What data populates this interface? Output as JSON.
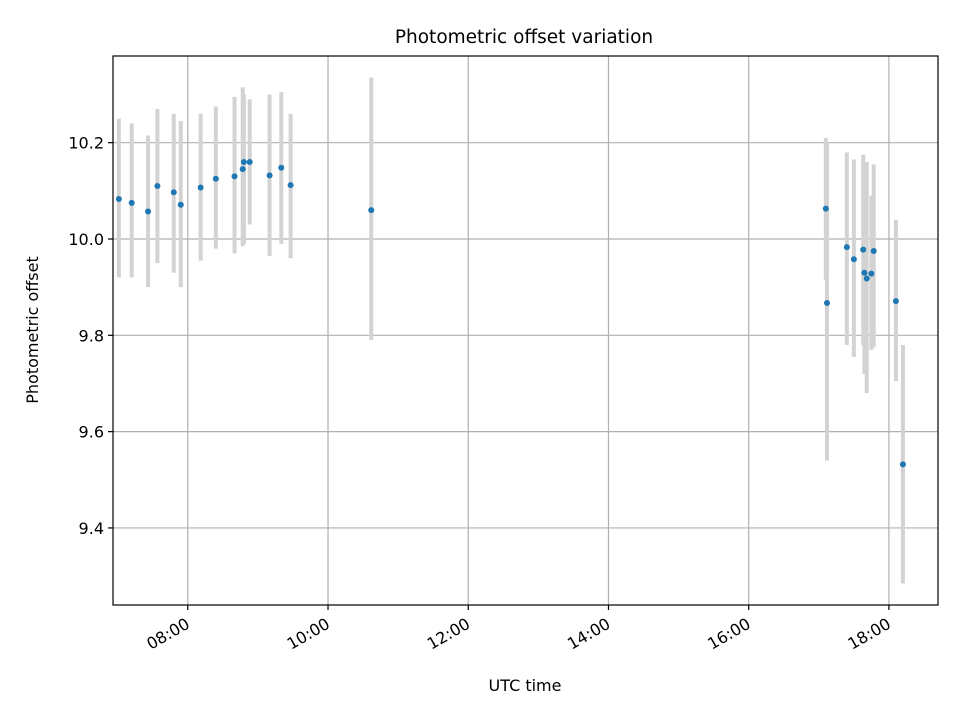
{
  "chart_data": {
    "type": "scatter",
    "title": "Photometric offset variation",
    "xlabel": "UTC time",
    "ylabel": "Photometric offset",
    "x_ticks": [
      "08:00",
      "10:00",
      "12:00",
      "14:00",
      "16:00",
      "18:00"
    ],
    "y_ticks": [
      "9.4",
      "9.6",
      "9.8",
      "10.0",
      "10.2"
    ],
    "xlim": [
      "06:56",
      "18:42"
    ],
    "ylim": [
      9.24,
      10.38
    ],
    "grid": true,
    "colors": {
      "point": "#1f77b4",
      "errorbar": "#d3d3d3",
      "grid": "#b0b0b0"
    },
    "points": [
      {
        "x": "07:01",
        "y": 10.083,
        "ylo": 9.92,
        "yhi": 10.25
      },
      {
        "x": "07:12",
        "y": 10.075,
        "ylo": 9.92,
        "yhi": 10.24
      },
      {
        "x": "07:26",
        "y": 10.057,
        "ylo": 9.9,
        "yhi": 10.215
      },
      {
        "x": "07:34",
        "y": 10.11,
        "ylo": 9.95,
        "yhi": 10.27
      },
      {
        "x": "07:48",
        "y": 10.097,
        "ylo": 9.93,
        "yhi": 10.26
      },
      {
        "x": "07:54",
        "y": 10.071,
        "ylo": 9.9,
        "yhi": 10.245
      },
      {
        "x": "08:11",
        "y": 10.107,
        "ylo": 9.955,
        "yhi": 10.26
      },
      {
        "x": "08:24",
        "y": 10.125,
        "ylo": 9.98,
        "yhi": 10.275
      },
      {
        "x": "08:40",
        "y": 10.13,
        "ylo": 9.97,
        "yhi": 10.295
      },
      {
        "x": "08:47",
        "y": 10.145,
        "ylo": 9.985,
        "yhi": 10.315
      },
      {
        "x": "08:48",
        "y": 10.16,
        "ylo": 9.99,
        "yhi": 10.3
      },
      {
        "x": "08:53",
        "y": 10.16,
        "ylo": 10.03,
        "yhi": 10.29
      },
      {
        "x": "09:10",
        "y": 10.132,
        "ylo": 9.965,
        "yhi": 10.3
      },
      {
        "x": "09:20",
        "y": 10.148,
        "ylo": 9.99,
        "yhi": 10.305
      },
      {
        "x": "09:28",
        "y": 10.112,
        "ylo": 9.96,
        "yhi": 10.26
      },
      {
        "x": "10:37",
        "y": 10.06,
        "ylo": 9.79,
        "yhi": 10.335
      },
      {
        "x": "17:06",
        "y": 10.063,
        "ylo": 9.915,
        "yhi": 10.21
      },
      {
        "x": "17:07",
        "y": 9.867,
        "ylo": 9.54,
        "yhi": 10.2
      },
      {
        "x": "17:24",
        "y": 9.983,
        "ylo": 9.78,
        "yhi": 10.18
      },
      {
        "x": "17:30",
        "y": 9.958,
        "ylo": 9.755,
        "yhi": 10.165
      },
      {
        "x": "17:38",
        "y": 9.978,
        "ylo": 9.78,
        "yhi": 10.175
      },
      {
        "x": "17:39",
        "y": 9.93,
        "ylo": 9.72,
        "yhi": 10.155
      },
      {
        "x": "17:41",
        "y": 9.918,
        "ylo": 9.68,
        "yhi": 10.16
      },
      {
        "x": "17:45",
        "y": 9.928,
        "ylo": 9.77,
        "yhi": 10.09
      },
      {
        "x": "17:47",
        "y": 9.975,
        "ylo": 9.775,
        "yhi": 10.155
      },
      {
        "x": "18:06",
        "y": 9.871,
        "ylo": 9.705,
        "yhi": 10.04
      },
      {
        "x": "18:12",
        "y": 9.532,
        "ylo": 9.285,
        "yhi": 9.78
      }
    ]
  }
}
